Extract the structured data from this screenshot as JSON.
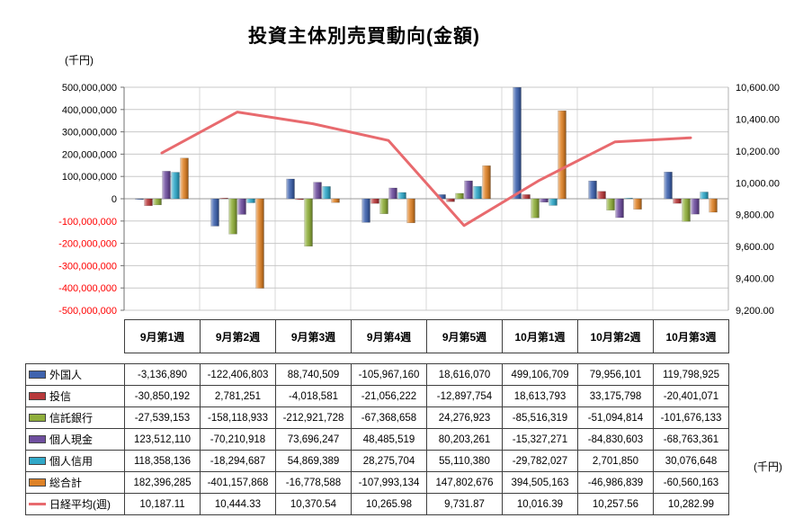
{
  "title": "投資主体別売買動向(金額)",
  "left_axis_unit": "(千円)",
  "right_axis_unit": "(千円)",
  "chart_data": {
    "type": "bar+line",
    "categories": [
      "9月第1週",
      "9月第2週",
      "9月第3週",
      "9月第4週",
      "9月第5週",
      "10月第1週",
      "10月第2週",
      "10月第3週"
    ],
    "left_axis": {
      "min": -500000000,
      "max": 500000000,
      "step": 100000000,
      "ticks": [
        "500,000,000",
        "400,000,000",
        "300,000,000",
        "200,000,000",
        "100,000,000",
        "0",
        "-100,000,000",
        "-200,000,000",
        "-300,000,000",
        "-400,000,000",
        "-500,000,000"
      ]
    },
    "right_axis": {
      "min": 9200,
      "max": 10600,
      "step": 200,
      "ticks": [
        "10,600.00",
        "10,400.00",
        "10,200.00",
        "10,000.00",
        "9,800.00",
        "9,600.00",
        "9,400.00",
        "9,200.00"
      ]
    },
    "bar_series": [
      {
        "name": "外国人",
        "color": "#3F63AE",
        "values": [
          -3136890,
          -122406803,
          88740509,
          -105967160,
          18616070,
          499106709,
          79956101,
          119798925
        ]
      },
      {
        "name": "投信",
        "color": "#B8393B",
        "values": [
          -30850192,
          2781251,
          -4018581,
          -21056222,
          -12897754,
          18613793,
          33175798,
          -20401071
        ]
      },
      {
        "name": "信託銀行",
        "color": "#8FAE3B",
        "values": [
          -27539153,
          -158118933,
          -212921728,
          -67368658,
          24276923,
          -85516319,
          -51094814,
          -101676133
        ]
      },
      {
        "name": "個人現金",
        "color": "#6E4E9E",
        "values": [
          123512110,
          -70210918,
          73696247,
          48485519,
          80203261,
          -15327271,
          -84830603,
          -68763361
        ]
      },
      {
        "name": "個人信用",
        "color": "#31A8C8",
        "values": [
          118358136,
          -18294687,
          54869389,
          28275704,
          55110380,
          -29782027,
          2701850,
          30076648
        ]
      },
      {
        "name": "総合計",
        "color": "#DE8227",
        "values": [
          182396285,
          -401157868,
          -16778588,
          -107993134,
          147802676,
          394505163,
          -46986839,
          -60560163
        ]
      }
    ],
    "line_series": {
      "name": "日経平均(週)",
      "color": "#E86A6E",
      "values": [
        10187.11,
        10444.33,
        10370.54,
        10265.98,
        9731.87,
        10016.39,
        10257.56,
        10282.99
      ]
    },
    "grid": true,
    "legend_position": "table"
  },
  "table": {
    "rows": [
      {
        "name": "外国人",
        "key": "bar",
        "color": "#3F63AE",
        "values": [
          "-3,136,890",
          "-122,406,803",
          "88,740,509",
          "-105,967,160",
          "18,616,070",
          "499,106,709",
          "79,956,101",
          "119,798,925"
        ]
      },
      {
        "name": "投信",
        "key": "bar",
        "color": "#B8393B",
        "values": [
          "-30,850,192",
          "2,781,251",
          "-4,018,581",
          "-21,056,222",
          "-12,897,754",
          "18,613,793",
          "33,175,798",
          "-20,401,071"
        ]
      },
      {
        "name": "信託銀行",
        "key": "bar",
        "color": "#8FAE3B",
        "values": [
          "-27,539,153",
          "-158,118,933",
          "-212,921,728",
          "-67,368,658",
          "24,276,923",
          "-85,516,319",
          "-51,094,814",
          "-101,676,133"
        ]
      },
      {
        "name": "個人現金",
        "key": "bar",
        "color": "#6E4E9E",
        "values": [
          "123,512,110",
          "-70,210,918",
          "73,696,247",
          "48,485,519",
          "80,203,261",
          "-15,327,271",
          "-84,830,603",
          "-68,763,361"
        ]
      },
      {
        "name": "個人信用",
        "key": "bar",
        "color": "#31A8C8",
        "values": [
          "118,358,136",
          "-18,294,687",
          "54,869,389",
          "28,275,704",
          "55,110,380",
          "-29,782,027",
          "2,701,850",
          "30,076,648"
        ]
      },
      {
        "name": "総合計",
        "key": "bar",
        "color": "#DE8227",
        "values": [
          "182,396,285",
          "-401,157,868",
          "-16,778,588",
          "-107,993,134",
          "147,802,676",
          "394,505,163",
          "-46,986,839",
          "-60,560,163"
        ]
      },
      {
        "name": "日経平均(週)",
        "key": "line",
        "color": "#E86A6E",
        "values": [
          "10,187.11",
          "10,444.33",
          "10,370.54",
          "10,265.98",
          "9,731.87",
          "10,016.39",
          "10,257.56",
          "10,282.99"
        ]
      }
    ]
  }
}
